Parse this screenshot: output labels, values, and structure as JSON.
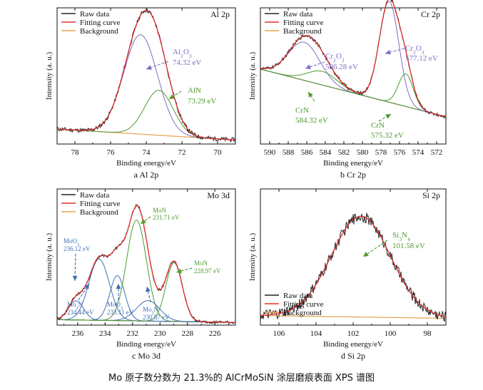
{
  "figure": {
    "caption": "Mo 原子数分数为 21.3%的 AlCrMoSiN 涂层磨痕表面 XPS 谱图"
  },
  "chart_data": [
    {
      "id": "al2p",
      "type": "line",
      "title": "Al 2p",
      "subtitle": "a  Al 2p",
      "xlabel": "Binding energy/eV",
      "ylabel": "Intensity (a. u.)",
      "xlim": [
        79,
        69
      ],
      "xticks": [
        78,
        76,
        74,
        72,
        70
      ],
      "grid": false,
      "legend": {
        "placement": "top-left",
        "entries": [
          "Raw data",
          "Fitting curve",
          "Background"
        ]
      },
      "colors": {
        "raw": "#222222",
        "fit": "#e03030",
        "background": "#e8a050",
        "peak_a": "#7b6fc0",
        "peak_b": "#4e9a30"
      },
      "background": {
        "start": 0.11,
        "end": 0.03
      },
      "noise": 0.016,
      "ylim": [
        0,
        1.0
      ],
      "series": [
        {
          "name": "Al2O3",
          "center": 74.32,
          "amp": 0.73,
          "width": 0.95
        },
        {
          "name": "AlN",
          "center": 73.29,
          "amp": 0.33,
          "width": 0.8
        }
      ],
      "annotations": [
        {
          "formula": [
            "Al",
            "2",
            "O",
            "3"
          ],
          "value": "74.32 eV",
          "color": "#7b6fc0"
        },
        {
          "formula": [
            "AlN"
          ],
          "value": "73.29 eV",
          "color": "#4e9a30"
        }
      ]
    },
    {
      "id": "cr2p",
      "type": "line",
      "title": "Cr 2p",
      "subtitle": "b  Cr 2p",
      "xlabel": "Binding energy/eV",
      "ylabel": "Intensity (a. u.)",
      "xlim": [
        591,
        571
      ],
      "xticks": [
        590,
        588,
        586,
        584,
        582,
        580,
        578,
        576,
        574,
        572
      ],
      "grid": false,
      "legend": {
        "placement": "top-left",
        "entries": [
          "Raw data",
          "Fitting curve",
          "Background"
        ]
      },
      "colors": {
        "raw": "#222222",
        "fit": "#e03030",
        "background": "#e8a050",
        "peak_a": "#7b6fc0",
        "peak_b": "#4e9a30",
        "peak_c": "#7b6fc0",
        "peak_d": "#4e9a30"
      },
      "background": {
        "start": 0.55,
        "end": 0.2
      },
      "noise": 0.012,
      "ylim": [
        0,
        1.0
      ],
      "series": [
        {
          "name": "Cr2O3 586.28",
          "center": 586.28,
          "amp": 0.28,
          "width": 1.7
        },
        {
          "name": "CrN 584.32",
          "center": 584.32,
          "amp": 0.1,
          "width": 1.6
        },
        {
          "name": "Cr2O3 577.12",
          "center": 577.12,
          "amp": 0.74,
          "width": 1.05
        },
        {
          "name": "CrN 575.32",
          "center": 575.32,
          "amp": 0.24,
          "width": 0.8
        }
      ],
      "annotations": [
        {
          "formula": [
            "Cr",
            "2",
            "O",
            "3"
          ],
          "value": "586.28 eV",
          "color": "#7b6fc0"
        },
        {
          "formula": [
            "Cr",
            "2",
            "O",
            "3"
          ],
          "value": "577.12 eV",
          "color": "#7b6fc0"
        },
        {
          "formula": [
            "CrN"
          ],
          "value": "584.32 eV",
          "color": "#4e9a30"
        },
        {
          "formula": [
            "CrN"
          ],
          "value": "575.32 eV",
          "color": "#4e9a30"
        }
      ]
    },
    {
      "id": "mo3d",
      "type": "line",
      "title": "Mo 3d",
      "subtitle": "c  Mo 3d",
      "xlabel": "Binding energy/eV",
      "ylabel": "Intensity (a. u.)",
      "xlim": [
        237.5,
        224.5
      ],
      "xticks": [
        236,
        234,
        232,
        230,
        228,
        226
      ],
      "grid": false,
      "legend": {
        "placement": "top-left",
        "entries": [
          "Raw data",
          "Fitting curve",
          "Background"
        ]
      },
      "colors": {
        "raw": "#222222",
        "fit": "#e03030",
        "background": "#e8a050",
        "moo3": "#3f6fb5",
        "mon": "#4e9a30"
      },
      "background": {
        "start": 0.04,
        "end": 0.02
      },
      "noise": 0.01,
      "ylim": [
        0,
        1.0
      ],
      "series": [
        {
          "name": "MoO3 236.12",
          "center": 236.12,
          "amp": 0.14,
          "width": 0.55
        },
        {
          "name": "Mo2N 234.44",
          "center": 234.44,
          "amp": 0.45,
          "width": 0.75
        },
        {
          "name": "MoO3 233.11",
          "center": 233.11,
          "amp": 0.33,
          "width": 0.55
        },
        {
          "name": "MoN 231.71",
          "center": 231.71,
          "amp": 0.74,
          "width": 0.72
        },
        {
          "name": "Mo2N 230.87",
          "center": 230.87,
          "amp": 0.15,
          "width": 0.85
        },
        {
          "name": "MoN 228.97",
          "center": 228.97,
          "amp": 0.43,
          "width": 0.6
        }
      ],
      "annotations": [
        {
          "formula": [
            "MoO",
            "3"
          ],
          "value": "236.12 eV",
          "color": "#3f6fb5"
        },
        {
          "formula": [
            "Mo",
            "2",
            "N"
          ],
          "value": "234.44 eV",
          "color": "#3f6fb5"
        },
        {
          "formula": [
            "MoO",
            "3"
          ],
          "value": "233.11 eV",
          "color": "#3f6fb5"
        },
        {
          "formula": [
            "MoN"
          ],
          "value": "231.71 eV",
          "color": "#4e9a30"
        },
        {
          "formula": [
            "Mo",
            "2",
            "N"
          ],
          "value": "230.87 eV",
          "color": "#3f6fb5"
        },
        {
          "formula": [
            "MoN"
          ],
          "value": "228.97 eV",
          "color": "#4e9a30"
        }
      ]
    },
    {
      "id": "si2p",
      "type": "line",
      "title": "Si 2p",
      "subtitle": "d  Si 2p",
      "xlabel": "Binding energy/eV",
      "ylabel": "Intensity (a. u.)",
      "xlim": [
        107,
        97
      ],
      "xticks": [
        106,
        104,
        102,
        100,
        98
      ],
      "grid": false,
      "legend": {
        "placement": "bottom-left",
        "entries": [
          "Raw data",
          "Fitting curve",
          "Background"
        ]
      },
      "colors": {
        "raw": "#222222",
        "fit": "#e03030",
        "background": "#e8a050"
      },
      "background": {
        "start": 0.07,
        "end": 0.05
      },
      "noise": 0.04,
      "ylim": [
        0,
        1.0
      ],
      "series": [
        {
          "name": "Si3N4",
          "center": 101.58,
          "amp": 0.74,
          "width": 1.6
        }
      ],
      "annotations": [
        {
          "formula": [
            "Si",
            "3",
            "N",
            "4"
          ],
          "value": "101.58 eV",
          "color": "#4e9a30"
        }
      ]
    }
  ]
}
